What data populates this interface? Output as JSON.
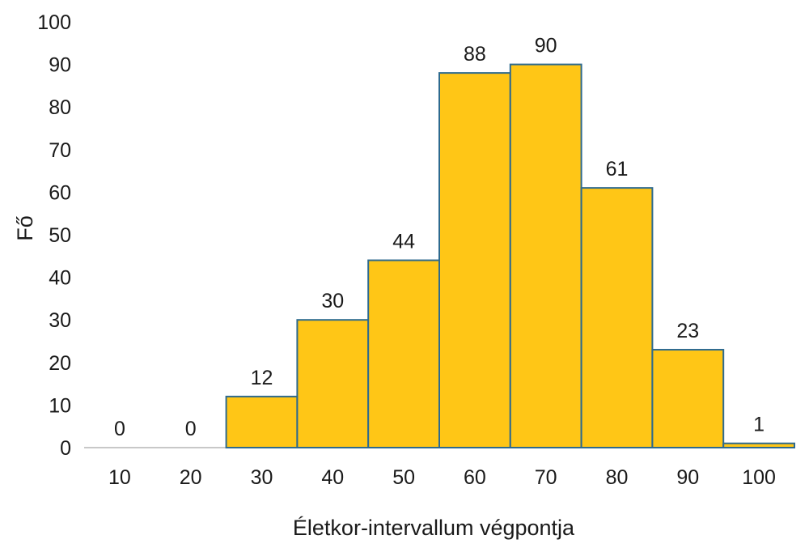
{
  "chart_data": {
    "type": "bar",
    "categories": [
      "10",
      "20",
      "30",
      "40",
      "50",
      "60",
      "70",
      "80",
      "90",
      "100"
    ],
    "values": [
      0,
      0,
      12,
      30,
      44,
      88,
      90,
      61,
      23,
      1
    ],
    "data_labels": [
      "0",
      "0",
      "12",
      "30",
      "44",
      "88",
      "90",
      "61",
      "23",
      "1"
    ],
    "title": "",
    "xlabel": "Életkor-intervallum végpontja",
    "ylabel": "Fő",
    "ylim": [
      0,
      100
    ],
    "yticks": [
      "0",
      "10",
      "20",
      "30",
      "40",
      "50",
      "60",
      "70",
      "80",
      "90",
      "100"
    ],
    "grid": false,
    "legend": "none",
    "bar_color": "#FFC616",
    "bar_edge_color": "#2E6A8E",
    "bar_gap": 0
  }
}
